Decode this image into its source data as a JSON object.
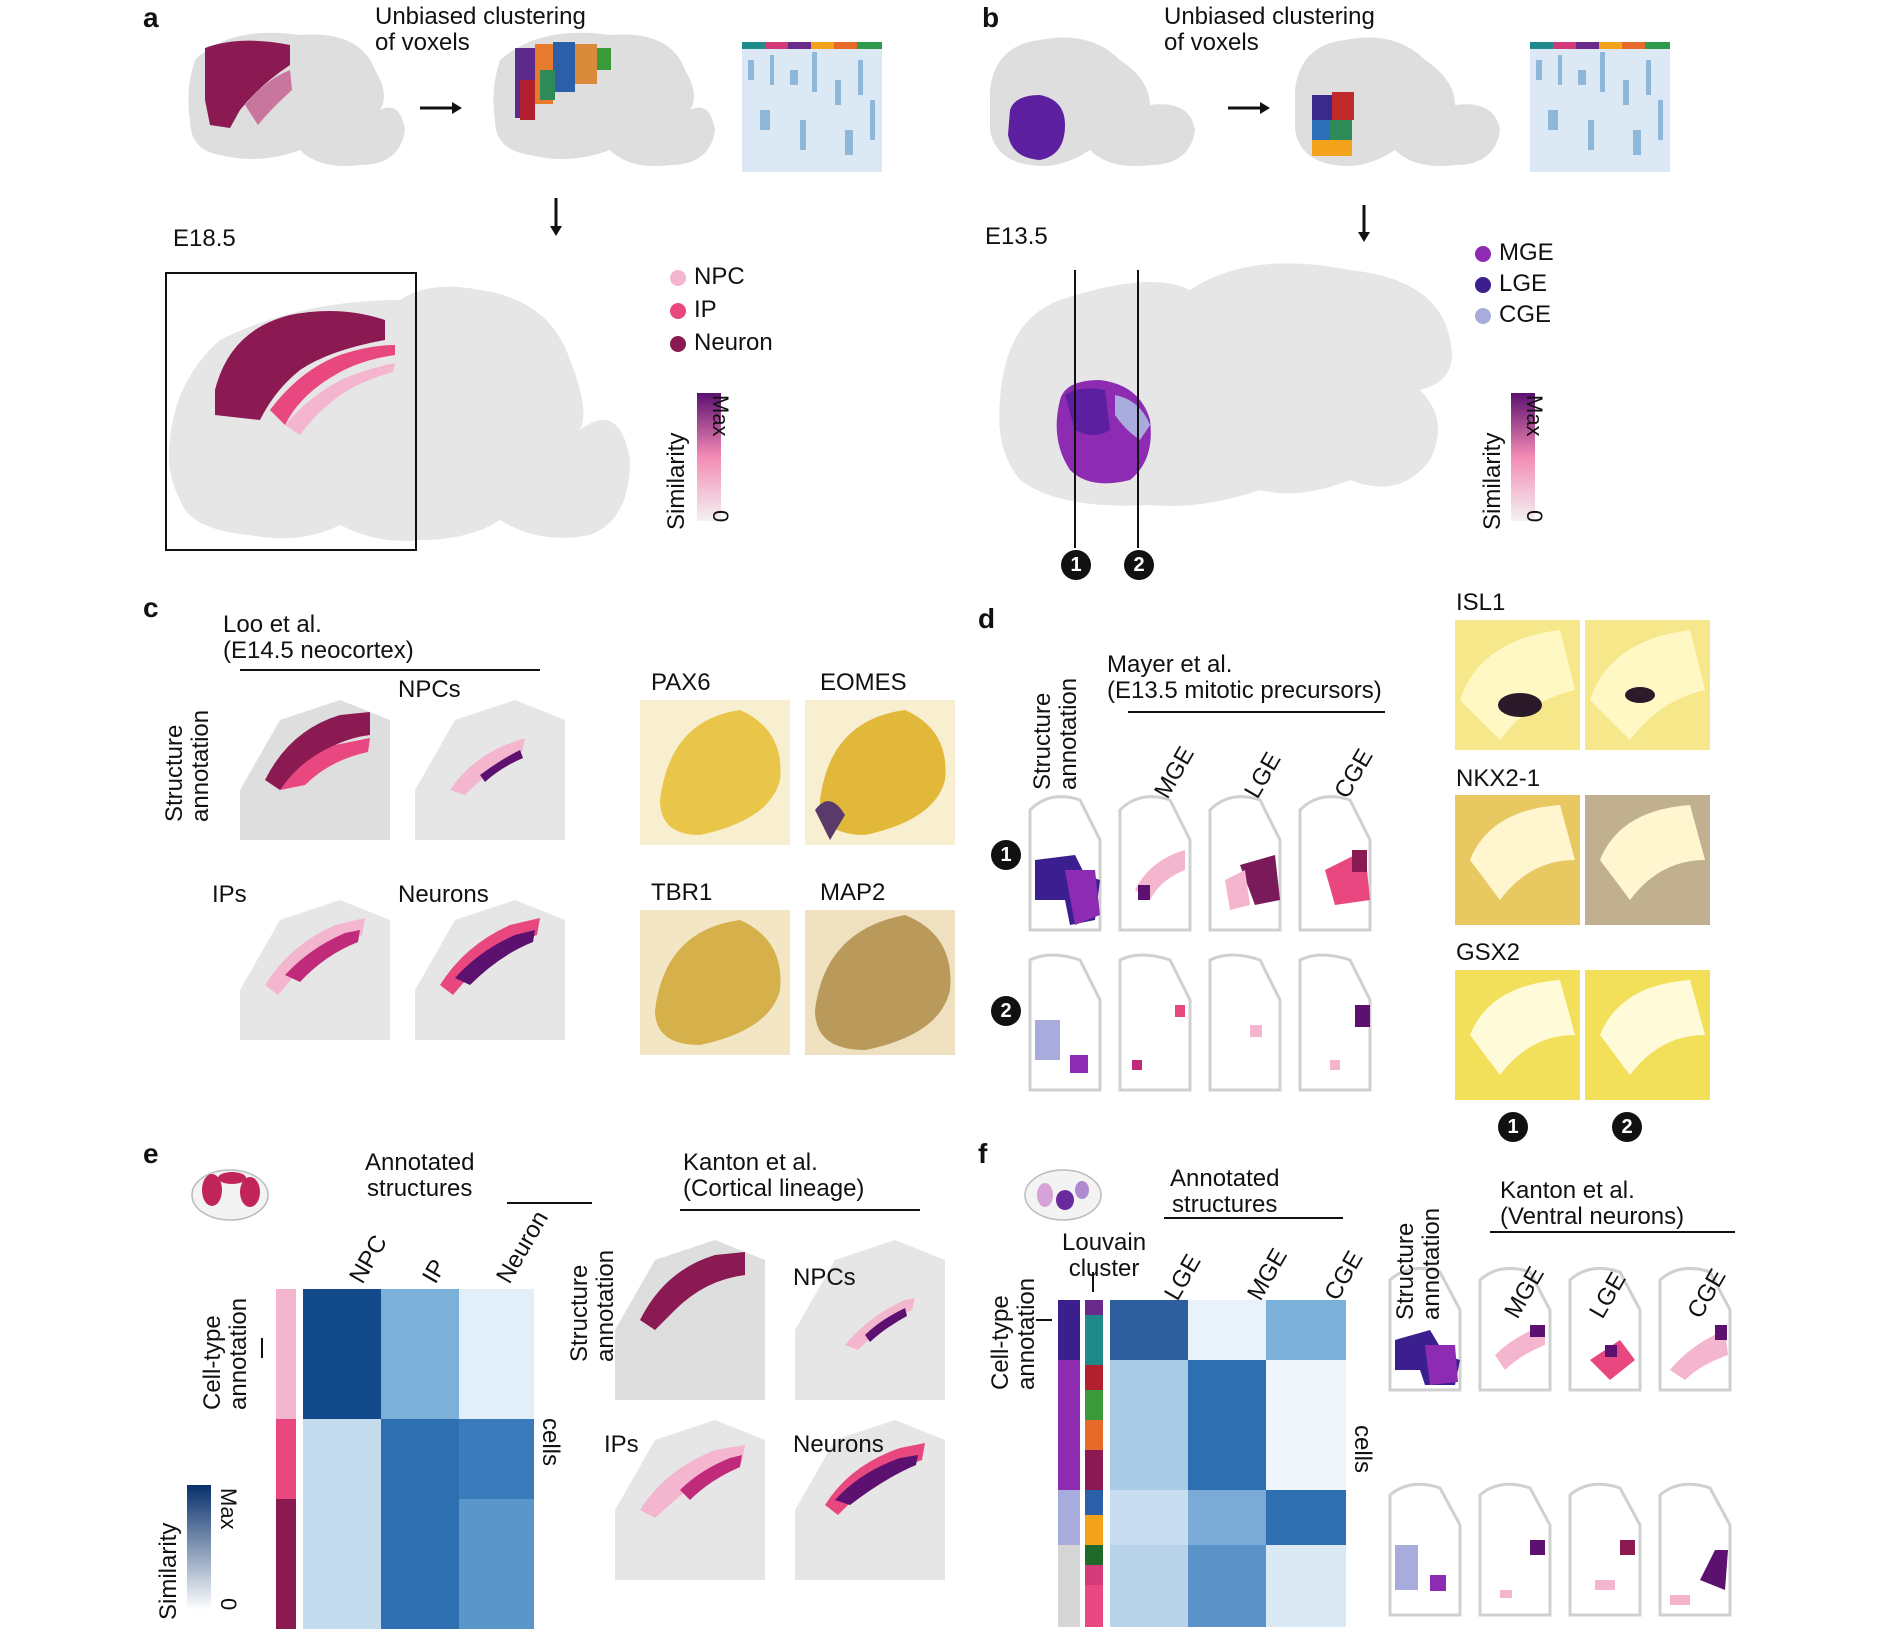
{
  "panels": {
    "a": {
      "letter": "a",
      "step_text": "Unbiased clustering\nof voxels",
      "stage": "E18.5",
      "legend": [
        {
          "label": "NPC",
          "color": "#f4b6cf"
        },
        {
          "label": "IP",
          "color": "#e8477f"
        },
        {
          "label": "Neuron",
          "color": "#8b1a53"
        }
      ],
      "colorbar": {
        "title": "Similarity",
        "max": "Max",
        "min": "0"
      }
    },
    "b": {
      "letter": "b",
      "step_text": "Unbiased clustering\nof voxels",
      "stage": "E13.5",
      "legend": [
        {
          "label": "MGE",
          "color": "#8e2bb3"
        },
        {
          "label": "LGE",
          "color": "#3b1f8f"
        },
        {
          "label": "CGE",
          "color": "#a7acdc"
        }
      ],
      "colorbar": {
        "title": "Similarity",
        "max": "Max",
        "min": "0"
      },
      "markers": [
        "1",
        "2"
      ]
    },
    "c": {
      "letter": "c",
      "source": "Loo et al.\n(E14.5 neocortex)",
      "row_label": "Structure\nannotation",
      "maps": [
        "NPCs",
        "IPs",
        "Neurons"
      ],
      "ish": [
        "PAX6",
        "EOMES",
        "TBR1",
        "MAP2"
      ]
    },
    "d": {
      "letter": "d",
      "row_label": "Structure\nannotation",
      "source": "Mayer et al.\n(E13.5 mitotic precursors)",
      "columns": [
        "MGE",
        "LGE",
        "CGE"
      ],
      "markers": [
        "1",
        "2"
      ],
      "ish": [
        "ISL1",
        "NKX2-1",
        "GSX2"
      ],
      "ish_markers": [
        "1",
        "2"
      ]
    },
    "e": {
      "letter": "e",
      "heading": "Annotated\nstructures",
      "columns": [
        "NPC",
        "IP",
        "Neuron"
      ],
      "row_label": "Cell-type\nannotation",
      "cells_label": "cells",
      "colorbar": {
        "title": "Similarity",
        "max": "Max",
        "min": "0"
      },
      "source": "Kanton et al.\n(Cortical lineage)",
      "row_label2": "Structure\nannotation",
      "maps": [
        "NPCs",
        "IPs",
        "Neurons"
      ]
    },
    "f": {
      "letter": "f",
      "louvain": "Louvain\ncluster",
      "heading": "Annotated\nstructures",
      "columns": [
        "LGE",
        "MGE",
        "CGE"
      ],
      "row_label": "Cell-type\nannotation",
      "cells_label": "cells",
      "source": "Kanton et al.\n(Ventral neurons)",
      "row_label2": "Structure\nannotation",
      "map_cols": [
        "MGE",
        "LGE",
        "CGE"
      ]
    }
  }
}
